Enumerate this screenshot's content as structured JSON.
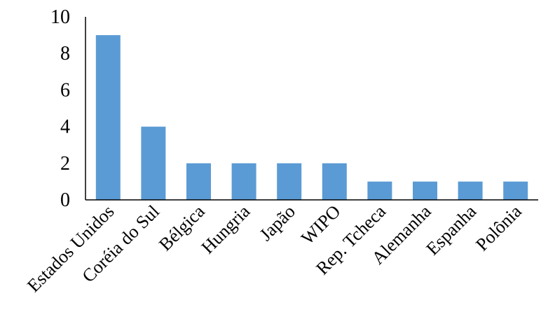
{
  "chart_data": {
    "type": "bar",
    "title": "",
    "xlabel": "",
    "ylabel": "",
    "categories": [
      "Estados Unidos",
      "Coréia do Sul",
      "Bélgica",
      "Hungria",
      "Japão",
      "WIPO",
      "Rep. Tcheca",
      "Alemanha",
      "Espanha",
      "Polônia"
    ],
    "values": [
      9,
      4,
      2,
      2,
      2,
      2,
      1,
      1,
      1,
      1
    ],
    "ylim": [
      0,
      10
    ],
    "yticks": [
      "0",
      "2",
      "4",
      "6",
      "8",
      "10"
    ],
    "grid": false,
    "legend": "none",
    "bar_color": "#5b9bd5",
    "axis_color": "#000000"
  }
}
